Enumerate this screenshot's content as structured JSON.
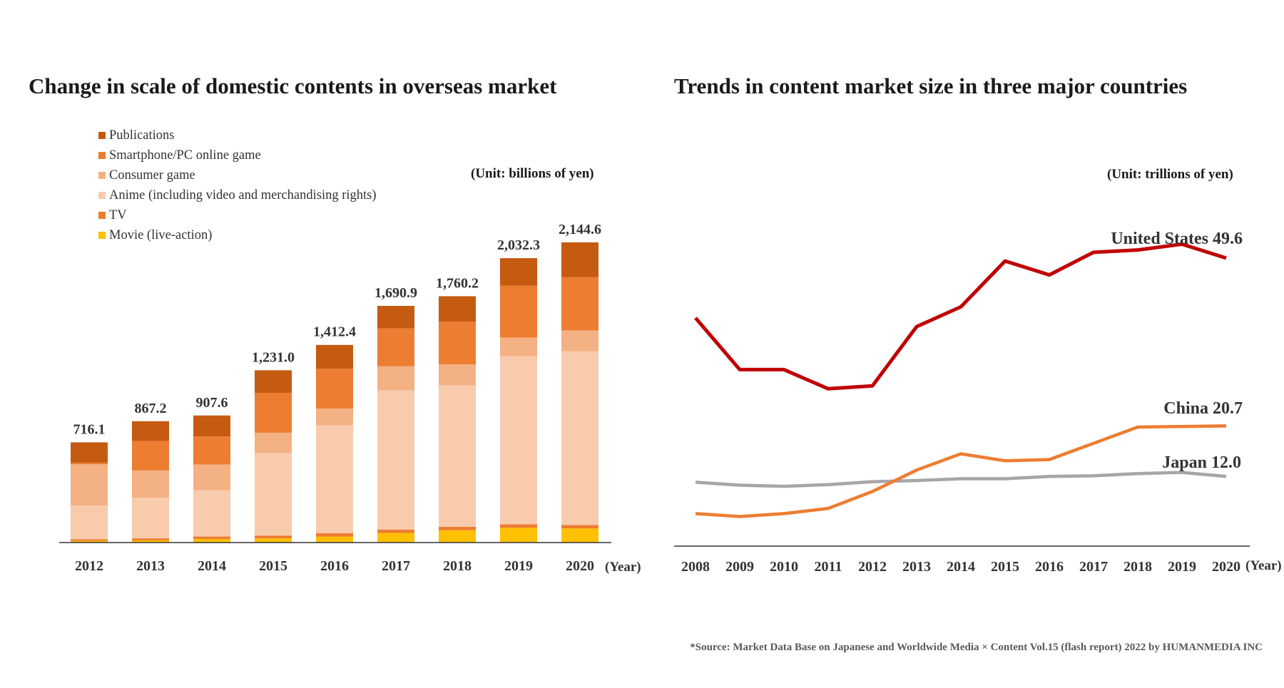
{
  "source_note": "*Source: Market Data Base on Japanese and Worldwide Media × Content  Vol.15 (flash report) 2022 by HUMANMEDIA INC",
  "chart_data": [
    {
      "type": "bar",
      "stacked": true,
      "title": "Change in scale of domestic contents in overseas market",
      "unit_label": "(Unit: billions of yen)",
      "xlabel": "(Year)",
      "categories": [
        "2012",
        "2013",
        "2014",
        "2015",
        "2016",
        "2017",
        "2018",
        "2019",
        "2020"
      ],
      "totals": [
        716.1,
        867.2,
        907.6,
        1231.0,
        1412.4,
        1690.9,
        1760.2,
        2032.3,
        2144.6
      ],
      "total_labels": [
        "716.1",
        "867.2",
        "907.6",
        "1,231.0",
        "1,412.4",
        "1,690.9",
        "1,760.2",
        "2,032.3",
        "2,144.6"
      ],
      "ylim": [
        0,
        2200
      ],
      "legend_position": "top-left",
      "grid": false,
      "series": [
        {
          "name": "Movie (live-action)",
          "color": "#ffc000",
          "values": [
            12,
            15,
            25,
            30,
            42,
            68,
            88,
            105,
            101
          ]
        },
        {
          "name": "TV",
          "color": "#ed7d31",
          "values": [
            12,
            15,
            18,
            20,
            25,
            25,
            25,
            25,
            25
          ]
        },
        {
          "name": "Anime (including video and merchandising rights)",
          "color": "#f8cbad",
          "values": [
            240,
            290,
            330,
            590,
            770,
            995,
            1010,
            1200,
            1240
          ]
        },
        {
          "name": "Consumer game",
          "color": "#f4b183",
          "values": [
            295,
            195,
            185,
            145,
            120,
            172,
            150,
            135,
            150
          ]
        },
        {
          "name": "Smartphone/PC online game",
          "color": "#ed7d31",
          "values": [
            12,
            210,
            200,
            285,
            285,
            270,
            305,
            370,
            380
          ]
        },
        {
          "name": "Publications",
          "color": "#c55a11",
          "values": [
            145,
            142,
            150,
            161,
            170,
            161,
            182,
            197,
            249
          ]
        }
      ]
    },
    {
      "type": "line",
      "title": "Trends in content market size in three major countries",
      "unit_label": "(Unit: trillions of yen)",
      "xlabel": "(Year)",
      "x": [
        "2008",
        "2009",
        "2010",
        "2011",
        "2012",
        "2013",
        "2014",
        "2015",
        "2016",
        "2017",
        "2018",
        "2019",
        "2020"
      ],
      "ylim": [
        0,
        56
      ],
      "grid": false,
      "series": [
        {
          "name": "United States",
          "end_label": "United States  49.6",
          "color": "#c00000",
          "values": [
            39.3,
            30.4,
            30.4,
            27.1,
            27.6,
            37.8,
            41.2,
            49.1,
            46.7,
            50.6,
            51.0,
            52.0,
            49.6
          ]
        },
        {
          "name": "China",
          "end_label": "China 20.7",
          "color": "#ed7d31",
          "values": [
            5.6,
            5.1,
            5.6,
            6.5,
            9.4,
            13.1,
            15.9,
            14.7,
            14.9,
            17.7,
            20.5,
            20.6,
            20.7
          ]
        },
        {
          "name": "Japan",
          "end_label": "Japan 12.0",
          "color": "#a6a6a6",
          "values": [
            11.0,
            10.5,
            10.3,
            10.6,
            11.1,
            11.3,
            11.6,
            11.6,
            12.0,
            12.1,
            12.5,
            12.7,
            12.0
          ]
        }
      ]
    }
  ]
}
